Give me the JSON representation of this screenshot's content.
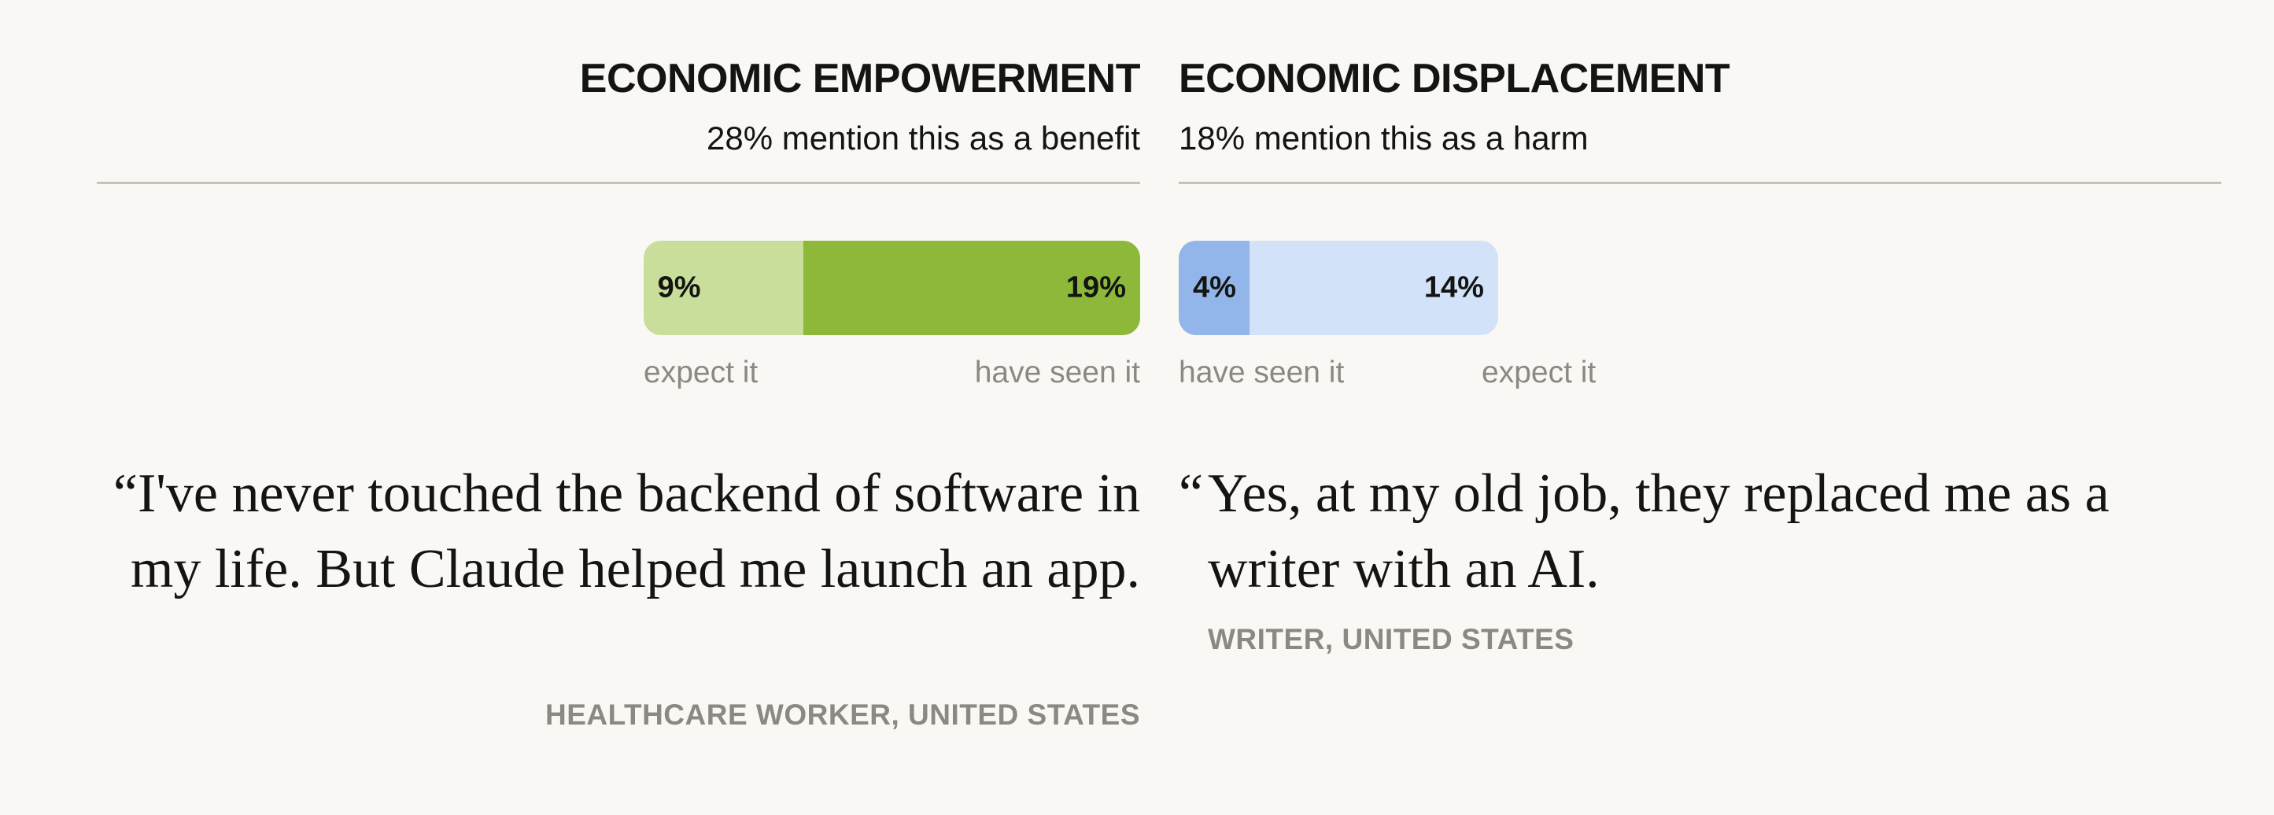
{
  "colors": {
    "empower_expect": "#c8de9a",
    "empower_seen": "#8db83a",
    "displace_seen": "#92b5ea",
    "displace_expect": "#d2e2f8",
    "background": "#f9f8f4"
  },
  "left": {
    "title": "ECONOMIC EMPOWERMENT",
    "subtitle": "28% mention this as a benefit",
    "label_a": "expect it",
    "label_b": "have seen it",
    "quote": "“I've never touched the backend of software in my life. But Claude helped me launch an app.",
    "attribution": "HEALTHCARE WORKER, UNITED STATES"
  },
  "right": {
    "title": "ECONOMIC DISPLACEMENT",
    "subtitle": "18% mention this as a harm",
    "label_a": "have seen it",
    "label_b": "expect it",
    "quote_mark": "“",
    "quote": "Yes, at my old job, they replaced me as a writer with an AI.",
    "attribution": "WRITER, UNITED STATES"
  },
  "chart_data": [
    {
      "type": "bar",
      "stacked": true,
      "orientation": "horizontal",
      "title": "ECONOMIC EMPOWERMENT",
      "series": [
        {
          "name": "expect it",
          "value": 9,
          "label": "9%"
        },
        {
          "name": "have seen it",
          "value": 19,
          "label": "19%"
        }
      ],
      "total": 28
    },
    {
      "type": "bar",
      "stacked": true,
      "orientation": "horizontal",
      "title": "ECONOMIC DISPLACEMENT",
      "series": [
        {
          "name": "have seen it",
          "value": 4,
          "label": "4%"
        },
        {
          "name": "expect it",
          "value": 14,
          "label": "14%"
        }
      ],
      "total": 18
    }
  ]
}
